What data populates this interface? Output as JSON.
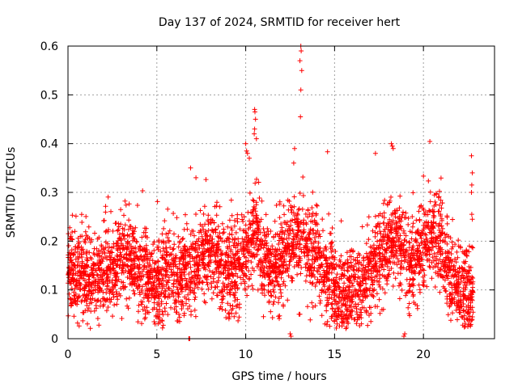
{
  "chart_data": {
    "type": "scatter",
    "title": "Day 137 of 2024, SRMTID for receiver hert",
    "xlabel": "GPS time / hours",
    "ylabel": "SRMTID / TECUs",
    "xlim": [
      0,
      24
    ],
    "ylim": [
      0,
      0.6
    ],
    "x_ticks": [
      "0",
      "5",
      "10",
      "15",
      "20"
    ],
    "y_ticks": [
      "0",
      "0.1",
      "0.2",
      "0.3",
      "0.4",
      "0.5",
      "0.6"
    ],
    "x_tick_values": [
      0,
      5,
      10,
      15,
      20
    ],
    "y_tick_values": [
      0,
      0.1,
      0.2,
      0.3,
      0.4,
      0.5,
      0.6
    ],
    "grid": true,
    "marker": "+",
    "color": "#ff0000",
    "trend": [
      [
        0.0,
        0.14
      ],
      [
        0.5,
        0.13
      ],
      [
        1.0,
        0.13
      ],
      [
        1.5,
        0.12
      ],
      [
        2.0,
        0.13
      ],
      [
        2.5,
        0.14
      ],
      [
        3.0,
        0.16
      ],
      [
        3.5,
        0.17
      ],
      [
        4.0,
        0.15
      ],
      [
        4.5,
        0.13
      ],
      [
        5.0,
        0.12
      ],
      [
        5.5,
        0.15
      ],
      [
        6.0,
        0.12
      ],
      [
        6.5,
        0.13
      ],
      [
        7.0,
        0.14
      ],
      [
        7.5,
        0.16
      ],
      [
        8.0,
        0.18
      ],
      [
        8.5,
        0.15
      ],
      [
        9.0,
        0.13
      ],
      [
        9.5,
        0.14
      ],
      [
        10.0,
        0.17
      ],
      [
        10.5,
        0.22
      ],
      [
        11.0,
        0.17
      ],
      [
        11.5,
        0.14
      ],
      [
        12.0,
        0.16
      ],
      [
        12.5,
        0.18
      ],
      [
        13.0,
        0.2
      ],
      [
        13.5,
        0.19
      ],
      [
        14.0,
        0.16
      ],
      [
        14.5,
        0.14
      ],
      [
        15.0,
        0.1
      ],
      [
        15.5,
        0.08
      ],
      [
        16.0,
        0.1
      ],
      [
        16.5,
        0.11
      ],
      [
        17.0,
        0.14
      ],
      [
        17.5,
        0.17
      ],
      [
        18.0,
        0.19
      ],
      [
        18.5,
        0.21
      ],
      [
        19.0,
        0.17
      ],
      [
        19.5,
        0.15
      ],
      [
        20.0,
        0.19
      ],
      [
        20.5,
        0.22
      ],
      [
        21.0,
        0.17
      ],
      [
        21.5,
        0.13
      ],
      [
        22.0,
        0.1
      ],
      [
        22.5,
        0.09
      ],
      [
        22.8,
        0.09
      ]
    ],
    "spread": 0.045,
    "points_per_hour": 170,
    "x_range": [
      0.0,
      22.8
    ],
    "extra_points": [
      [
        6.8,
        0.0
      ],
      [
        6.82,
        0.0
      ],
      [
        6.85,
        0.0
      ],
      [
        12.5,
        0.01
      ],
      [
        12.55,
        0.005
      ],
      [
        13.1,
        0.6
      ],
      [
        13.12,
        0.59
      ],
      [
        13.05,
        0.57
      ],
      [
        13.15,
        0.55
      ],
      [
        13.1,
        0.51
      ],
      [
        13.08,
        0.455
      ],
      [
        10.5,
        0.47
      ],
      [
        10.52,
        0.465
      ],
      [
        10.55,
        0.45
      ],
      [
        10.5,
        0.43
      ],
      [
        10.48,
        0.42
      ],
      [
        10.6,
        0.41
      ],
      [
        10.0,
        0.4
      ],
      [
        10.05,
        0.385
      ],
      [
        10.1,
        0.38
      ],
      [
        10.2,
        0.37
      ],
      [
        18.2,
        0.4
      ],
      [
        18.25,
        0.395
      ],
      [
        18.3,
        0.39
      ],
      [
        22.7,
        0.375
      ],
      [
        22.75,
        0.34
      ],
      [
        22.72,
        0.315
      ],
      [
        22.7,
        0.3
      ],
      [
        22.72,
        0.255
      ],
      [
        22.75,
        0.245
      ],
      [
        4.9,
        0.03
      ],
      [
        4.95,
        0.045
      ],
      [
        5.0,
        0.06
      ],
      [
        15.7,
        0.035
      ],
      [
        15.75,
        0.04
      ],
      [
        15.8,
        0.045
      ],
      [
        13.0,
        0.05
      ],
      [
        13.05,
        0.05
      ],
      [
        18.9,
        0.005
      ],
      [
        18.95,
        0.01
      ],
      [
        17.3,
        0.38
      ],
      [
        12.7,
        0.36
      ],
      [
        12.75,
        0.39
      ],
      [
        6.9,
        0.35
      ],
      [
        7.2,
        0.33
      ]
    ]
  }
}
